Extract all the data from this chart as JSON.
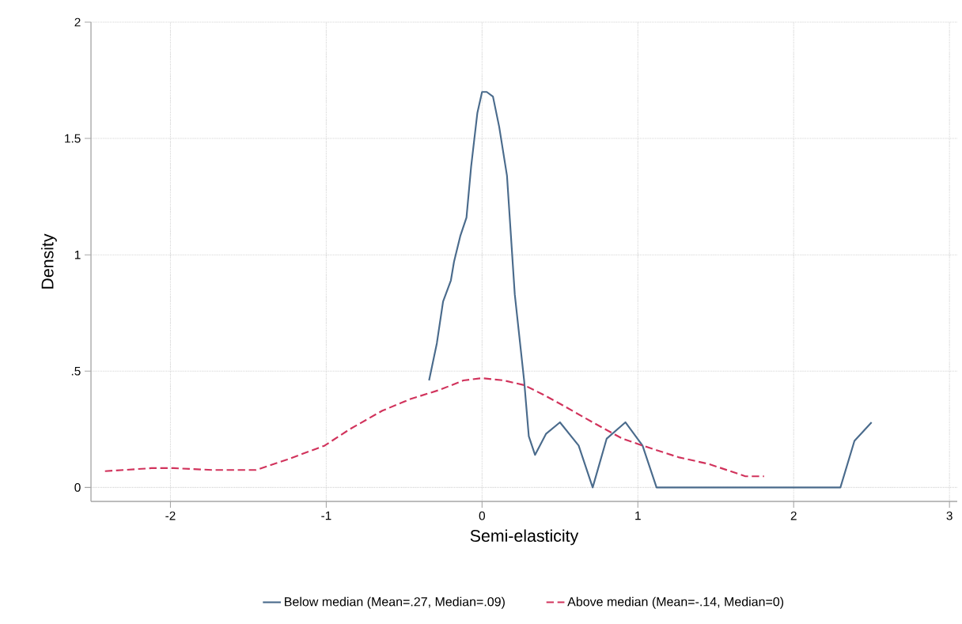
{
  "chart_data": {
    "type": "line",
    "xlabel": "Semi-elasticity",
    "ylabel": "Density",
    "xlim": [
      -2.51,
      3.05
    ],
    "ylim": [
      -0.06,
      2
    ],
    "xticks": [
      -2,
      -1,
      0,
      1,
      2,
      3
    ],
    "yticks": [
      0,
      {
        "value": 0.5,
        "label": ".5"
      },
      1,
      1.5,
      2
    ],
    "grid": true,
    "legend": "bottom",
    "marker": "none",
    "series": [
      {
        "name": "Below median (Mean=.27, Median=.09)",
        "color": "#4a6b8c",
        "line_style": "solid",
        "x": [
          -0.34,
          -0.29,
          -0.25,
          -0.2,
          -0.18,
          -0.14,
          -0.1,
          -0.07,
          -0.03,
          0.0,
          0.03,
          0.07,
          0.11,
          0.16,
          0.21,
          0.27,
          0.3,
          0.34,
          0.41,
          0.5,
          0.62,
          0.71,
          0.8,
          0.92,
          1.03,
          1.12,
          2.3,
          2.39,
          2.5
        ],
        "values": [
          0.46,
          0.62,
          0.8,
          0.89,
          0.97,
          1.08,
          1.16,
          1.38,
          1.61,
          1.7,
          1.7,
          1.68,
          1.55,
          1.34,
          0.83,
          0.46,
          0.22,
          0.14,
          0.23,
          0.28,
          0.18,
          0,
          0.21,
          0.28,
          0.18,
          0,
          0,
          0.2,
          0.28
        ]
      },
      {
        "name": "Above median (Mean=-.14, Median=0)",
        "color": "#d1335c",
        "line_style": "dashed",
        "x": [
          -2.42,
          -2.12,
          -1.98,
          -1.73,
          -1.45,
          -1.25,
          -1.01,
          -0.85,
          -0.64,
          -0.46,
          -0.27,
          -0.12,
          0.0,
          0.14,
          0.27,
          0.39,
          0.5,
          0.71,
          0.9,
          1.03,
          1.26,
          1.46,
          1.69,
          1.81
        ],
        "values": [
          0.07,
          0.083,
          0.083,
          0.075,
          0.075,
          0.12,
          0.18,
          0.25,
          0.33,
          0.38,
          0.42,
          0.46,
          0.47,
          0.46,
          0.44,
          0.4,
          0.36,
          0.28,
          0.21,
          0.18,
          0.13,
          0.1,
          0.048,
          0.048
        ]
      }
    ]
  }
}
